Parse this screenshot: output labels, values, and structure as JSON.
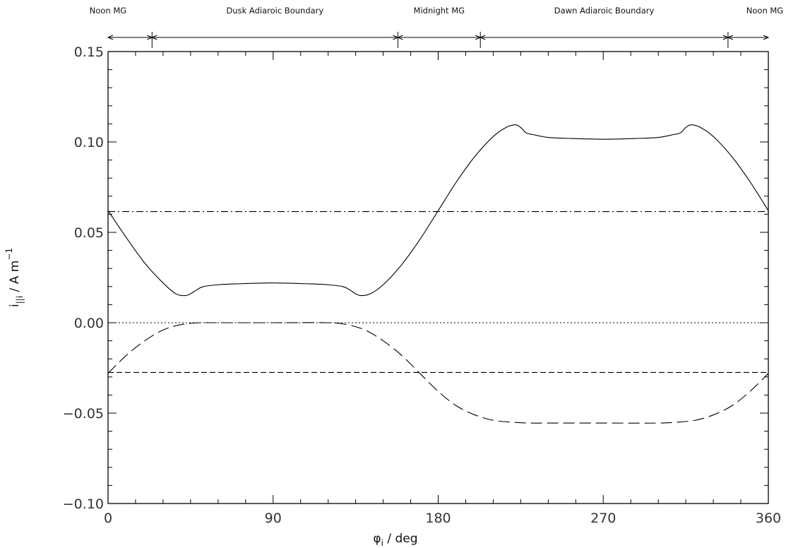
{
  "chart_data": {
    "type": "line",
    "title": "",
    "xlabel": {
      "symbol": "φ",
      "subscript": "i",
      "text": " / deg"
    },
    "ylabel": {
      "symbol": "i",
      "subscript": "||i",
      "text": " / A m",
      "superscript": "−1"
    },
    "xlim": [
      0,
      360
    ],
    "ylim": [
      -0.1,
      0.15
    ],
    "x_ticks": [
      0,
      90,
      180,
      270,
      360
    ],
    "x_tick_labels": [
      "0",
      "90",
      "180",
      "270",
      "360"
    ],
    "y_ticks": [
      -0.1,
      -0.05,
      0.0,
      0.05,
      0.1,
      0.15
    ],
    "y_tick_labels": [
      "−0.10",
      "−0.05",
      "0.00",
      "0.05",
      "0.10",
      "0.15"
    ],
    "grid": false,
    "legend": "none",
    "regions": [
      {
        "label": "Noon MG",
        "x_start": 0,
        "x_end": 24
      },
      {
        "label": "Dusk Adiaroic Boundary",
        "x_start": 24,
        "x_end": 158
      },
      {
        "label": "Midnight MG",
        "x_start": 158,
        "x_end": 203
      },
      {
        "label": "Dawn Adiaroic Boundary",
        "x_start": 203,
        "x_end": 338
      },
      {
        "label": "Noon MG",
        "x_start": 338,
        "x_end": 360
      }
    ],
    "series": [
      {
        "style": "solid",
        "x": [
          0,
          10,
          20,
          30,
          37,
          42,
          45,
          48,
          52,
          60,
          70,
          90,
          110,
          120,
          128,
          132,
          135,
          138,
          143,
          150,
          160,
          170,
          180,
          190,
          200,
          210,
          217,
          222,
          225,
          228,
          232,
          240,
          250,
          270,
          290,
          300,
          308,
          312,
          315,
          318,
          323,
          330,
          340,
          350,
          360
        ],
        "y": [
          0.062,
          0.047,
          0.033,
          0.022,
          0.016,
          0.015,
          0.016,
          0.018,
          0.02,
          0.021,
          0.0215,
          0.022,
          0.0215,
          0.021,
          0.02,
          0.018,
          0.016,
          0.015,
          0.016,
          0.021,
          0.032,
          0.046,
          0.062,
          0.078,
          0.092,
          0.103,
          0.108,
          0.1095,
          0.108,
          0.105,
          0.104,
          0.1025,
          0.102,
          0.1015,
          0.102,
          0.1025,
          0.104,
          0.105,
          0.108,
          0.1095,
          0.108,
          0.103,
          0.092,
          0.078,
          0.062
        ]
      },
      {
        "style": "long-dash",
        "x": [
          0,
          10,
          20,
          30,
          40,
          50,
          60,
          90,
          120,
          130,
          140,
          150,
          160,
          170,
          180,
          190,
          200,
          210,
          220,
          230,
          240,
          270,
          300,
          310,
          320,
          330,
          340,
          350,
          360
        ],
        "y": [
          -0.028,
          -0.018,
          -0.01,
          -0.004,
          -0.001,
          0.0,
          0.0,
          0.0,
          0.0,
          -0.001,
          -0.004,
          -0.01,
          -0.018,
          -0.028,
          -0.038,
          -0.046,
          -0.051,
          -0.054,
          -0.055,
          -0.0555,
          -0.0555,
          -0.0555,
          -0.0555,
          -0.055,
          -0.054,
          -0.051,
          -0.046,
          -0.038,
          -0.028
        ]
      },
      {
        "style": "dash-dot",
        "x": [
          0,
          360
        ],
        "y": [
          0.0615,
          0.0615
        ]
      },
      {
        "style": "dotted",
        "x": [
          0,
          360
        ],
        "y": [
          0.0,
          0.0
        ]
      },
      {
        "style": "short-dash",
        "x": [
          0,
          360
        ],
        "y": [
          -0.0275,
          -0.0275
        ]
      }
    ]
  }
}
